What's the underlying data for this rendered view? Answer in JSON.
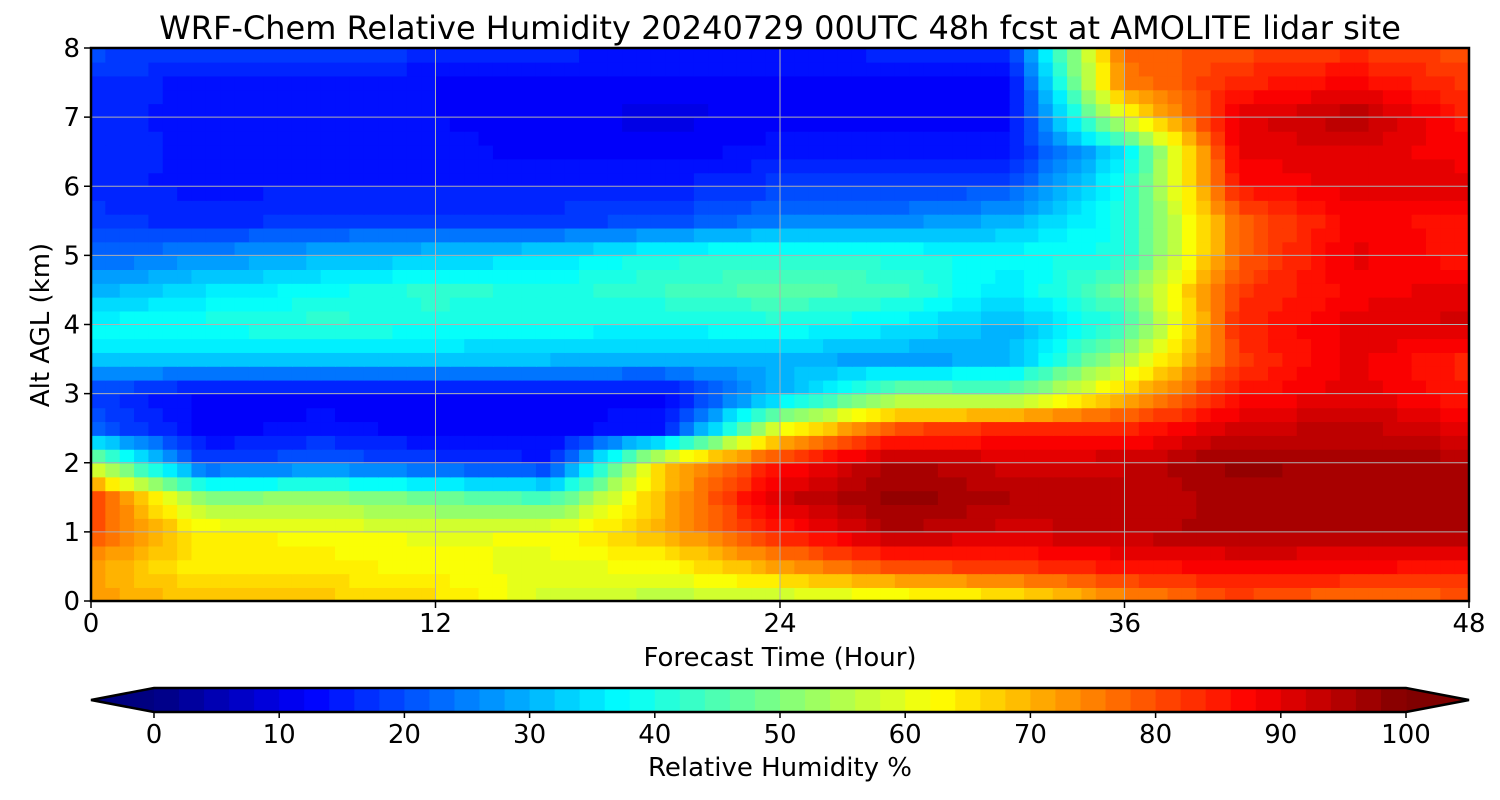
{
  "chart_data": {
    "type": "heatmap",
    "title": "WRF-Chem Relative Humidity 20240729 00UTC 48h fcst at AMOLITE lidar site",
    "xlabel": "Forecast Time (Hour)",
    "ylabel": "Alt AGL (km)",
    "xlim": [
      0,
      48
    ],
    "ylim": [
      0,
      8
    ],
    "x_ticks": [
      "0",
      "12",
      "24",
      "36",
      "48"
    ],
    "y_ticks": [
      "0",
      "1",
      "2",
      "3",
      "4",
      "5",
      "6",
      "7",
      "8"
    ],
    "grid": true,
    "colormap": "jet",
    "colorbar": {
      "label": "Relative Humidity %",
      "range": [
        0,
        100
      ],
      "ticks": [
        "0",
        "10",
        "20",
        "30",
        "40",
        "50",
        "60",
        "70",
        "80",
        "90",
        "100"
      ],
      "extend": "both",
      "location": "bottom"
    },
    "x": [
      0,
      4,
      8,
      12,
      16,
      20,
      24,
      28,
      32,
      36,
      40,
      44,
      48
    ],
    "y": [
      0,
      0.5,
      1,
      1.5,
      2,
      2.5,
      3,
      3.5,
      4,
      4.5,
      5,
      5.5,
      6,
      6.5,
      7,
      7.5,
      8
    ],
    "values": [
      [
        72,
        68,
        68,
        66,
        58,
        55,
        55,
        58,
        62,
        72,
        80,
        75,
        78
      ],
      [
        72,
        63,
        64,
        62,
        60,
        62,
        72,
        80,
        82,
        86,
        88,
        88,
        85
      ],
      [
        80,
        64,
        62,
        60,
        62,
        70,
        85,
        95,
        92,
        94,
        96,
        95,
        96
      ],
      [
        82,
        50,
        52,
        48,
        44,
        70,
        92,
        98,
        95,
        93,
        96,
        95,
        96
      ],
      [
        55,
        18,
        22,
        18,
        15,
        68,
        85,
        96,
        92,
        93,
        98,
        96,
        96
      ],
      [
        22,
        12,
        14,
        12,
        12,
        15,
        60,
        80,
        84,
        84,
        92,
        94,
        90
      ],
      [
        18,
        12,
        12,
        12,
        12,
        12,
        30,
        50,
        48,
        68,
        86,
        90,
        85
      ],
      [
        33,
        32,
        33,
        32,
        31,
        30,
        30,
        28,
        30,
        55,
        82,
        90,
        84
      ],
      [
        38,
        40,
        42,
        40,
        39,
        38,
        40,
        36,
        30,
        42,
        84,
        90,
        92
      ],
      [
        30,
        35,
        38,
        42,
        40,
        43,
        46,
        44,
        35,
        48,
        82,
        88,
        90
      ],
      [
        22,
        26,
        30,
        32,
        35,
        40,
        42,
        40,
        38,
        40,
        78,
        90,
        85
      ],
      [
        18,
        16,
        18,
        18,
        18,
        20,
        25,
        26,
        30,
        40,
        78,
        88,
        86
      ],
      [
        16,
        14,
        15,
        15,
        15,
        15,
        18,
        18,
        20,
        40,
        86,
        90,
        90
      ],
      [
        17,
        14,
        14,
        14,
        12,
        12,
        14,
        14,
        15,
        35,
        90,
        90,
        88
      ],
      [
        17,
        13,
        13,
        13,
        12,
        10,
        12,
        12,
        12,
        60,
        90,
        95,
        85
      ],
      [
        17,
        14,
        14,
        13,
        12,
        12,
        12,
        12,
        12,
        75,
        84,
        88,
        82
      ],
      [
        20,
        18,
        20,
        17,
        16,
        15,
        15,
        16,
        18,
        78,
        80,
        82,
        80
      ]
    ]
  }
}
